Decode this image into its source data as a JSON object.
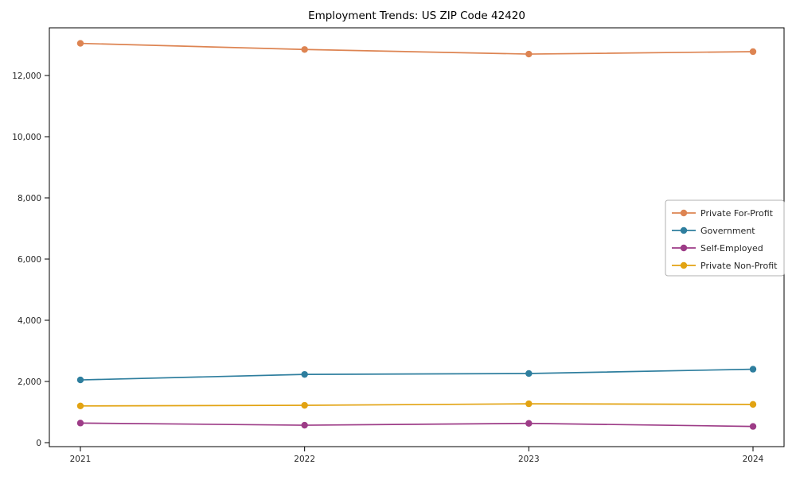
{
  "title": "Employment Trends: US ZIP Code 42420",
  "chart_data": {
    "type": "line",
    "title": "Employment Trends: US ZIP Code 42420",
    "x_labels": [
      "2021",
      "2022",
      "2023",
      "2024"
    ],
    "series": [
      {
        "name": "Private For-Profit",
        "color": "#dd8452",
        "values": [
          13050,
          12850,
          12700,
          12780
        ]
      },
      {
        "name": "Government",
        "color": "#2e7e9e",
        "values": [
          2050,
          2230,
          2260,
          2400
        ]
      },
      {
        "name": "Self-Employed",
        "color": "#9d3c87",
        "values": [
          640,
          570,
          630,
          530
        ]
      },
      {
        "name": "Private Non-Profit",
        "color": "#e2a312",
        "values": [
          1200,
          1220,
          1270,
          1250
        ]
      }
    ],
    "ylim": [
      0,
      13550
    ],
    "yticks": [
      0,
      2000,
      4000,
      6000,
      8000,
      10000,
      12000
    ],
    "ytick_labels": [
      "0",
      "2,000",
      "4,000",
      "6,000",
      "8,000",
      "10,000",
      "12,000"
    ],
    "legend_position": "center right",
    "grid": false,
    "axis_color": "#000000",
    "tick_label_color": "#262626",
    "legend_border_color": "#b0b0b0"
  }
}
